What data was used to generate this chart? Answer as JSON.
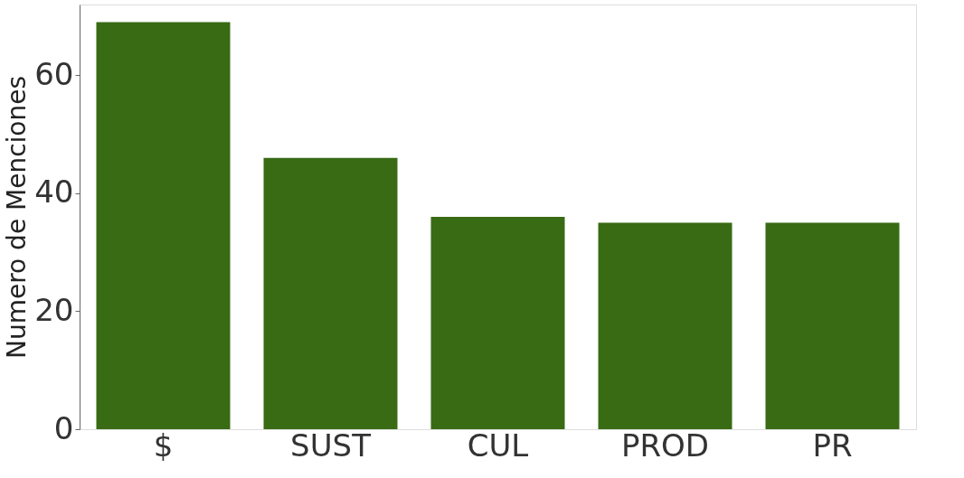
{
  "chart_data": {
    "type": "bar",
    "ylabel": "Numero de Menciones",
    "categories": [
      "$",
      "SUST",
      "CUL",
      "PROD",
      "PR"
    ],
    "values": [
      69,
      46,
      36,
      35,
      35
    ],
    "color": "#386b14",
    "ylim": [
      0,
      72
    ],
    "yticks": [
      0,
      20,
      40,
      60
    ],
    "grid": false
  }
}
